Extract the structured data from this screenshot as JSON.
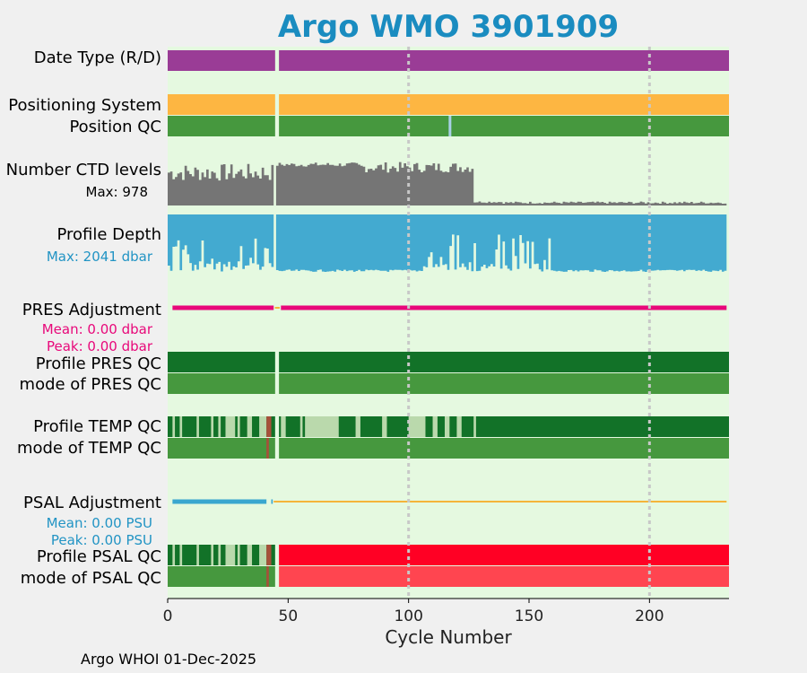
{
  "title": "Argo WMO 3901909",
  "footer": "Argo WHOI 01-Dec-2025",
  "colors": {
    "panel_bg": "#e5f9e0",
    "date_type": "#9a3c96",
    "positioning": "#fdb642",
    "qc_good": "#46983e",
    "qc_dark": "#127228",
    "qc_light": "#bad9ac",
    "qc_bad": "#ff0024",
    "qc_bad_mode": "#ff4550",
    "ctd": "#757575",
    "depth": "#43aad0",
    "pres_adj": "#e8087a",
    "psal_adj": "#3aa7cf",
    "psal_zero": "#f4b43a",
    "qc_outlier": "#a6503a"
  },
  "chart_data": {
    "type": "table",
    "xlabel": "Cycle Number",
    "xlim": [
      0,
      233
    ],
    "xticks": [
      0,
      50,
      100,
      150,
      200
    ],
    "grid_x": [
      100,
      200
    ],
    "missing_cycles": [
      45
    ],
    "rows": {
      "date_type": {
        "label": "Date Type (R/D)"
      },
      "positioning": {
        "label": "Positioning System"
      },
      "position_qc": {
        "label": "Position QC",
        "flagged_cycles": [
          117
        ]
      },
      "ctd_levels": {
        "label": "Number CTD levels",
        "stat": "Max: 978",
        "max": 978
      },
      "profile_depth": {
        "label": "Profile Depth",
        "stat": "Max: 2041 dbar",
        "max": 2041
      },
      "pres_adjustment": {
        "label": "PRES Adjustment",
        "mean": "Mean: 0.00 dbar",
        "peak": "Peak: 0.00 dbar"
      },
      "profile_pres_qc": {
        "label": "Profile PRES QC"
      },
      "mode_pres_qc": {
        "label": "mode of PRES QC"
      },
      "profile_temp_qc": {
        "label": "Profile TEMP QC"
      },
      "mode_temp_qc": {
        "label": "mode of TEMP QC"
      },
      "psal_adjustment": {
        "label": "PSAL Adjustment",
        "mean": "Mean: 0.00 PSU",
        "peak": "Peak: 0.00 PSU"
      },
      "profile_psal_qc": {
        "label": "Profile PSAL QC"
      },
      "mode_psal_qc": {
        "label": "mode of PSAL QC"
      }
    }
  }
}
